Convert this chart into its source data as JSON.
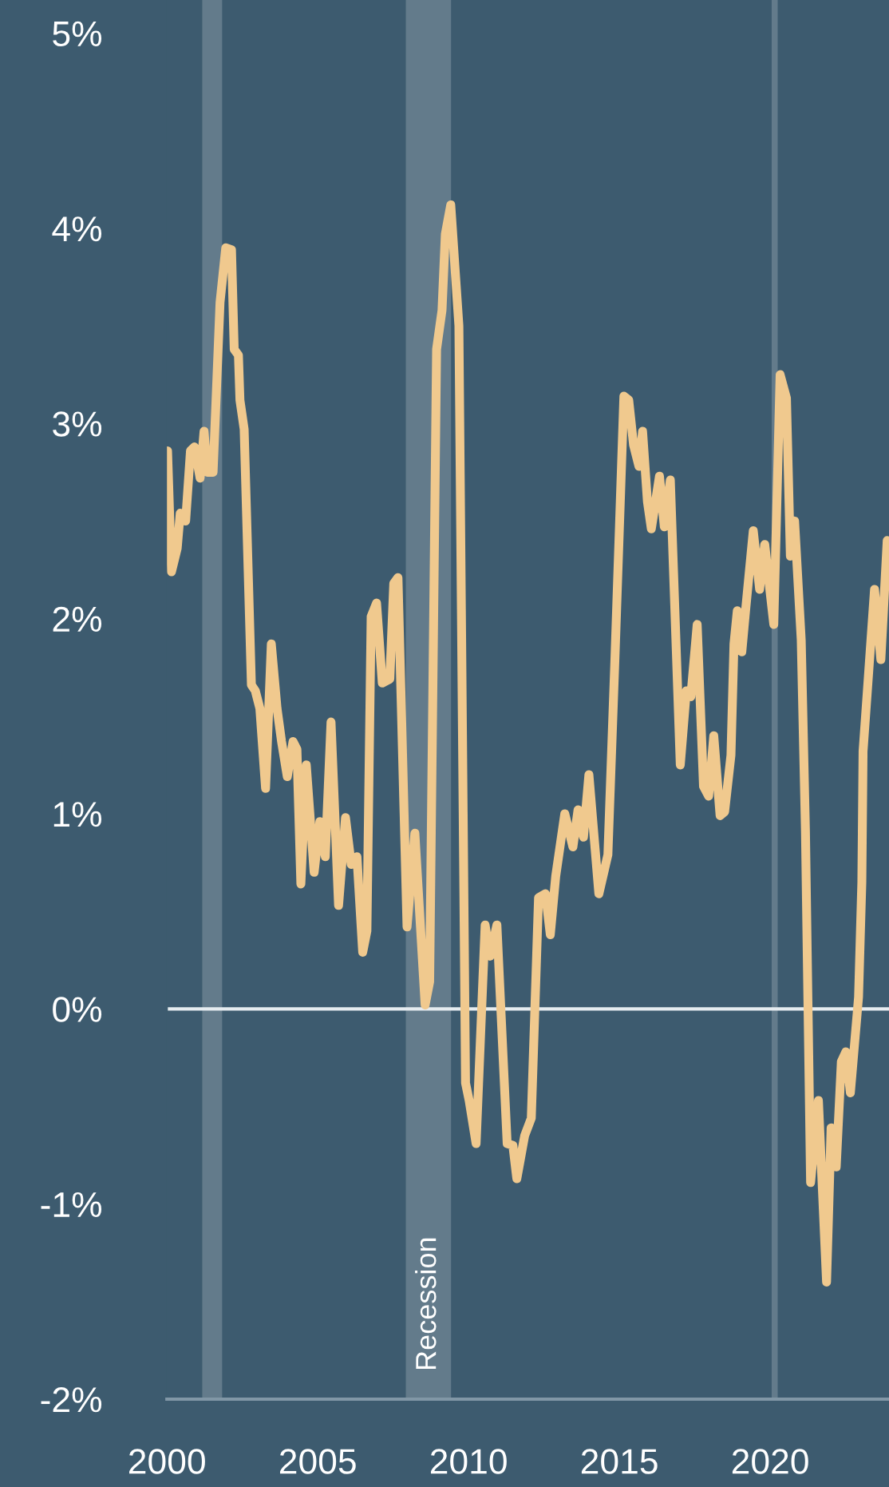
{
  "chart_data": {
    "type": "line",
    "x": [
      2000.02,
      2000.15,
      2000.34,
      2000.44,
      2000.62,
      2000.78,
      2000.91,
      2001.1,
      2001.23,
      2001.34,
      2001.53,
      2001.76,
      2001.95,
      2002.14,
      2002.23,
      2002.37,
      2002.42,
      2002.56,
      2002.8,
      2002.93,
      2003.08,
      2003.27,
      2003.46,
      2003.65,
      2003.8,
      2003.99,
      2004.18,
      2004.31,
      2004.44,
      2004.62,
      2004.88,
      2005.07,
      2005.25,
      2005.44,
      2005.69,
      2005.92,
      2006.11,
      2006.3,
      2006.49,
      2006.63,
      2006.77,
      2006.95,
      2007.14,
      2007.39,
      2007.52,
      2007.66,
      2007.96,
      2008.22,
      2008.56,
      2008.71,
      2008.94,
      2009.12,
      2009.23,
      2009.41,
      2009.68,
      2009.9,
      2010.02,
      2010.25,
      2010.55,
      2010.71,
      2010.94,
      2011.28,
      2011.47,
      2011.6,
      2011.86,
      2012.08,
      2012.32,
      2012.55,
      2012.71,
      2012.89,
      2013.19,
      2013.46,
      2013.63,
      2013.81,
      2013.99,
      2014.32,
      2014.62,
      2014.85,
      2015.15,
      2015.31,
      2015.47,
      2015.65,
      2015.77,
      2015.93,
      2016.06,
      2016.33,
      2016.49,
      2016.69,
      2017.02,
      2017.22,
      2017.37,
      2017.58,
      2017.79,
      2017.96,
      2018.13,
      2018.34,
      2018.49,
      2018.7,
      2018.8,
      2018.91,
      2019.06,
      2019.19,
      2019.44,
      2019.65,
      2019.82,
      2020.12,
      2020.33,
      2020.54,
      2020.67,
      2020.81,
      2021.03,
      2021.17,
      2021.34,
      2021.6,
      2021.87,
      2022.02,
      2022.19,
      2022.36,
      2022.51,
      2022.66,
      2022.93,
      2023.04,
      2023.08,
      2023.25,
      2023.46,
      2023.67,
      2023.88
    ],
    "series": [
      {
        "color": "#f0c98e",
        "values": [
          2.86,
          2.24,
          2.36,
          2.54,
          2.5,
          2.86,
          2.88,
          2.72,
          2.96,
          2.75,
          2.75,
          3.62,
          3.9,
          3.89,
          3.38,
          3.35,
          3.12,
          2.97,
          1.66,
          1.63,
          1.54,
          1.13,
          1.87,
          1.54,
          1.37,
          1.19,
          1.37,
          1.33,
          0.64,
          1.25,
          0.7,
          0.96,
          0.78,
          1.47,
          0.53,
          0.98,
          0.74,
          0.78,
          0.29,
          0.4,
          2.01,
          2.08,
          1.67,
          1.69,
          2.18,
          2.21,
          0.42,
          0.9,
          0.02,
          0.14,
          3.38,
          3.58,
          3.97,
          4.12,
          3.5,
          -0.38,
          -0.47,
          -0.69,
          0.43,
          0.27,
          0.43,
          -0.69,
          -0.7,
          -0.87,
          -0.65,
          -0.56,
          0.57,
          0.59,
          0.38,
          0.68,
          1.0,
          0.83,
          1.02,
          0.88,
          1.2,
          0.59,
          0.79,
          1.78,
          3.14,
          3.12,
          2.89,
          2.78,
          2.96,
          2.6,
          2.46,
          2.73,
          2.47,
          2.71,
          1.25,
          1.63,
          1.6,
          1.97,
          1.14,
          1.09,
          1.4,
          0.99,
          1.01,
          1.3,
          1.87,
          2.04,
          1.83,
          2.05,
          2.45,
          2.15,
          2.38,
          1.97,
          3.25,
          3.13,
          2.32,
          2.5,
          1.89,
          0.91,
          -0.89,
          -0.47,
          -1.4,
          -0.61,
          -0.81,
          -0.27,
          -0.22,
          -0.43,
          0.06,
          0.65,
          1.32,
          1.69,
          2.15,
          1.79,
          2.4
        ]
      }
    ],
    "xlim": [
      2000,
      2023.94
    ],
    "xticks": [
      2000,
      2005,
      2010,
      2015,
      2020
    ],
    "ylim": [
      -2,
      5.17
    ],
    "yticks": [
      {
        "value": -2,
        "label": "-2%"
      },
      {
        "value": -1,
        "label": "-1%"
      },
      {
        "value": 0,
        "label": "0%"
      },
      {
        "value": 1,
        "label": "1%"
      },
      {
        "value": 2,
        "label": "2%"
      },
      {
        "value": 3,
        "label": "3%"
      },
      {
        "value": 4,
        "label": "4%"
      },
      {
        "value": 5,
        "label": "5%"
      }
    ],
    "ref_lines": [
      {
        "axis": "y",
        "value": 0,
        "color": "#e6ecf0"
      }
    ],
    "bands": [
      {
        "axis": "x",
        "from": 2001.17,
        "to": 2001.83,
        "color": "#637b8b"
      },
      {
        "axis": "x",
        "from": 2007.92,
        "to": 2009.42,
        "label": "Recession",
        "color": "#637b8b"
      },
      {
        "axis": "x",
        "from": 2020.05,
        "to": 2020.25,
        "color": "#637b8b"
      }
    ],
    "marker": "none",
    "line_style": "solid"
  }
}
